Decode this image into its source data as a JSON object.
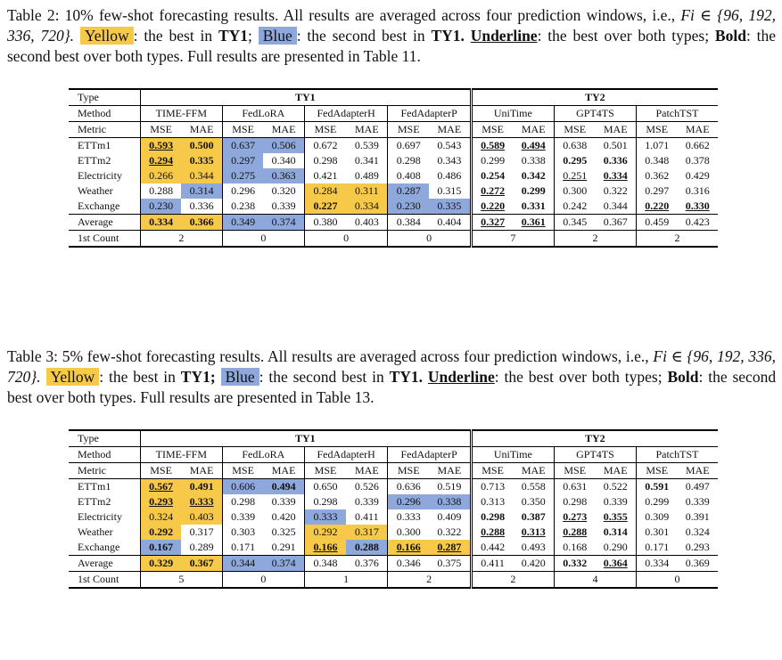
{
  "table2": {
    "caption_prefix": "Table 2: 10% few-shot forecasting results. All results are averaged across four prediction windows, i.e.,",
    "caption_formula": "Fi ∈ {96, 192, 336, 720}.",
    "yellow_label": "Yellow",
    "yellow_text": ": the best in",
    "ty1_ref": "TY1",
    "blue_label": "Blue",
    "blue_text": ": the second best in",
    "ty1_ref2": "TY1.",
    "underline_label": "Underline",
    "underline_text": ": the best over both types;",
    "bold_label": "Bold",
    "bold_text": ": the second best over both types. Full results are presented in Table 11.",
    "header_type": "Type",
    "ty1": "TY1",
    "ty2": "TY2",
    "header_method": "Method",
    "header_metric": "Metric",
    "methods": [
      "TIME-FFM",
      "FedLoRA",
      "FedAdapterH",
      "FedAdapterP",
      "UniTime",
      "GPT4TS",
      "PatchTST"
    ],
    "mse": "MSE",
    "mae": "MAE",
    "rows": [
      {
        "name": "ETTm1",
        "cells": [
          "0.593",
          "0.500",
          "0.637",
          "0.506",
          "0.672",
          "0.539",
          "0.697",
          "0.543",
          "0.589",
          "0.494",
          "0.638",
          "0.501",
          "1.071",
          "0.662"
        ]
      },
      {
        "name": "ETTm2",
        "cells": [
          "0.294",
          "0.335",
          "0.297",
          "0.340",
          "0.298",
          "0.341",
          "0.298",
          "0.343",
          "0.299",
          "0.338",
          "0.295",
          "0.336",
          "0.348",
          "0.378"
        ]
      },
      {
        "name": "Electricity",
        "cells": [
          "0.266",
          "0.344",
          "0.275",
          "0.363",
          "0.421",
          "0.489",
          "0.408",
          "0.486",
          "0.254",
          "0.342",
          "0.251",
          "0.334",
          "0.362",
          "0.429"
        ]
      },
      {
        "name": "Weather",
        "cells": [
          "0.288",
          "0.314",
          "0.296",
          "0.320",
          "0.284",
          "0.311",
          "0.287",
          "0.315",
          "0.272",
          "0.299",
          "0.300",
          "0.322",
          "0.297",
          "0.316"
        ]
      },
      {
        "name": "Exchange",
        "cells": [
          "0.230",
          "0.336",
          "0.238",
          "0.339",
          "0.227",
          "0.334",
          "0.230",
          "0.335",
          "0.220",
          "0.331",
          "0.242",
          "0.344",
          "0.220",
          "0.330"
        ]
      }
    ],
    "average": {
      "name": "Average",
      "cells": [
        "0.334",
        "0.366",
        "0.349",
        "0.374",
        "0.380",
        "0.403",
        "0.384",
        "0.404",
        "0.327",
        "0.361",
        "0.345",
        "0.367",
        "0.459",
        "0.423"
      ]
    },
    "count": {
      "name": "1st Count",
      "cells": [
        "2",
        "0",
        "0",
        "0",
        "7",
        "2",
        "2"
      ]
    }
  },
  "table3": {
    "caption_prefix": "Table 3: 5% few-shot forecasting results. All results are averaged across four prediction windows, i.e.,",
    "caption_formula": "Fi ∈ {96, 192, 336, 720}.",
    "yellow_label": "Yellow",
    "yellow_text": ": the best in",
    "ty1_ref": "TY1;",
    "blue_label": "Blue",
    "blue_text": ": the second best in",
    "ty1_ref2": "TY1.",
    "underline_label": "Underline",
    "underline_text": ":",
    "tail_text": "the best over both types;",
    "bold_label": "Bold",
    "bold_text": ": the second best over both types. Full results are presented in Table 13.",
    "rows": [
      {
        "name": "ETTm1",
        "cells": [
          "0.567",
          "0.491",
          "0.606",
          "0.494",
          "0.650",
          "0.526",
          "0.636",
          "0.519",
          "0.713",
          "0.558",
          "0.631",
          "0.522",
          "0.591",
          "0.497"
        ]
      },
      {
        "name": "ETTm2",
        "cells": [
          "0.293",
          "0.333",
          "0.298",
          "0.339",
          "0.298",
          "0.339",
          "0.296",
          "0.338",
          "0.313",
          "0.350",
          "0.298",
          "0.339",
          "0.299",
          "0.339"
        ]
      },
      {
        "name": "Electricity",
        "cells": [
          "0.324",
          "0.403",
          "0.339",
          "0.420",
          "0.333",
          "0.411",
          "0.333",
          "0.409",
          "0.298",
          "0.387",
          "0.273",
          "0.355",
          "0.309",
          "0.391"
        ]
      },
      {
        "name": "Weather",
        "cells": [
          "0.292",
          "0.317",
          "0.303",
          "0.325",
          "0.292",
          "0.317",
          "0.300",
          "0.322",
          "0.288",
          "0.313",
          "0.288",
          "0.314",
          "0.301",
          "0.324"
        ]
      },
      {
        "name": "Exchange",
        "cells": [
          "0.167",
          "0.289",
          "0.171",
          "0.291",
          "0.166",
          "0.288",
          "0.166",
          "0.287",
          "0.442",
          "0.493",
          "0.168",
          "0.290",
          "0.171",
          "0.293"
        ]
      }
    ],
    "average": {
      "name": "Average",
      "cells": [
        "0.329",
        "0.367",
        "0.344",
        "0.374",
        "0.348",
        "0.376",
        "0.346",
        "0.375",
        "0.411",
        "0.420",
        "0.332",
        "0.364",
        "0.334",
        "0.369"
      ]
    },
    "count": {
      "name": "1st Count",
      "cells": [
        "5",
        "0",
        "1",
        "2",
        "2",
        "4",
        "0"
      ]
    }
  }
}
